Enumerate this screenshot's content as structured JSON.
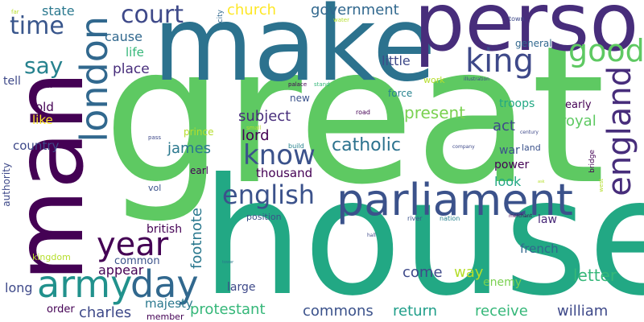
{
  "background": "#ffffff",
  "palette": {
    "deep_purple": "#440154",
    "purple": "#482878",
    "indigo": "#3e4989",
    "blue": "#31688e",
    "teal": "#26828e",
    "teal_green": "#1f9e89",
    "green": "#35b779",
    "light_green": "#6ece58",
    "lime": "#b5de2b",
    "yellow": "#fde725"
  },
  "words": {
    "great": "great",
    "make": "make",
    "person": "person",
    "man": "man",
    "house": "house",
    "parliament": "parliament",
    "army": "army",
    "day": "day",
    "year": "year",
    "london": "london",
    "king": "king",
    "england": "england",
    "english": "english",
    "good": "good",
    "time": "time",
    "know": "know",
    "court": "court",
    "say": "say",
    "catholic": "catholic",
    "church": "church",
    "government": "government",
    "state": "state",
    "little": "little",
    "cause": "cause",
    "life": "life",
    "place": "place",
    "present": "present",
    "troops": "troops",
    "act": "act",
    "royal": "royal",
    "early": "early",
    "lord": "lord",
    "subject": "subject",
    "james": "james",
    "thousand": "thousand",
    "country": "country",
    "old": "old",
    "like": "like",
    "tell": "tell",
    "earl": "earl",
    "prince": "prince",
    "war": "war",
    "land": "land",
    "power": "power",
    "look": "look",
    "law": "law",
    "french": "french",
    "letter": "letter",
    "enemy": "enemy",
    "way": "way",
    "come": "come",
    "return": "return",
    "receive": "receive",
    "william": "william",
    "commons": "commons",
    "protestant": "protestant",
    "charles": "charles",
    "majesty": "majesty",
    "member": "member",
    "order": "order",
    "long": "long",
    "appear": "appear",
    "common": "common",
    "british": "british",
    "footnote": "footnote",
    "large": "large",
    "position": "position",
    "kingdom": "kingdom",
    "authority": "authority",
    "vol": "vol",
    "general": "general",
    "work": "work",
    "force": "force",
    "new": "new",
    "road": "road",
    "small": "small",
    "build": "build",
    "bridge": "bridge",
    "city": "city",
    "water": "water",
    "town": "town",
    "palace": "palace",
    "stand": "stand",
    "illustration": "illustration",
    "street": "street",
    "pass": "pass",
    "company": "company",
    "century": "century",
    "river": "river",
    "nation": "nation",
    "merchant": "merchant",
    "west": "west",
    "hall": "hall",
    "tower": "tower",
    "far": "far",
    "ask": "ask"
  }
}
